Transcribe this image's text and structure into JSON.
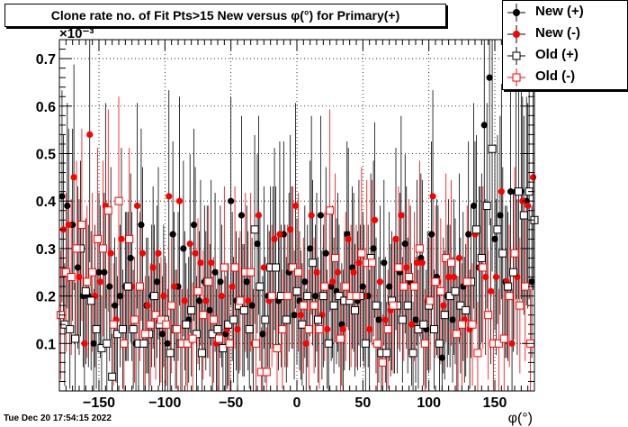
{
  "chart_data": {
    "type": "scatter",
    "title": "Clone rate no. of Fit Pts>15 New versus φ(°) for Primary(+)",
    "xlabel": "φ(°)",
    "ylabel": "",
    "y_exponent_label": "×10⁻³",
    "xlim": [
      -180,
      180
    ],
    "ylim": [
      0,
      0.74
    ],
    "x_ticks": [
      -150,
      -100,
      -50,
      0,
      50,
      100,
      150
    ],
    "x_tick_labels": [
      "−150",
      "−100",
      "−50",
      "0",
      "50",
      "100",
      "150"
    ],
    "y_ticks": [
      0.1,
      0.2,
      0.3,
      0.4,
      0.5,
      0.6,
      0.7
    ],
    "y_tick_labels": [
      "0.1",
      "0.2",
      "0.3",
      "0.4",
      "0.5",
      "0.6",
      "0.7"
    ],
    "grid": true,
    "legend_position": "top-right",
    "series": [
      {
        "name": "New (+)",
        "marker": "filled-circle",
        "color": "#000000",
        "x": [
          -178,
          -174,
          -170,
          -166,
          -162,
          -158,
          -154,
          -150,
          -146,
          -142,
          -138,
          -134,
          -130,
          -126,
          -122,
          -118,
          -114,
          -110,
          -106,
          -102,
          -98,
          -94,
          -90,
          -86,
          -82,
          -78,
          -74,
          -70,
          -66,
          -62,
          -58,
          -54,
          -50,
          -46,
          -42,
          -38,
          -34,
          -30,
          -26,
          -22,
          -18,
          -14,
          -10,
          -6,
          -2,
          2,
          6,
          10,
          14,
          18,
          22,
          26,
          30,
          34,
          38,
          42,
          46,
          50,
          54,
          58,
          62,
          66,
          70,
          74,
          78,
          82,
          86,
          90,
          94,
          98,
          102,
          106,
          110,
          114,
          118,
          122,
          126,
          130,
          134,
          138,
          142,
          146,
          150,
          154,
          158,
          162,
          166,
          170,
          174,
          178
        ],
        "y": [
          0.41,
          0.39,
          0.35,
          0.26,
          0.2,
          0.2,
          0.1,
          0.25,
          0.25,
          0.22,
          0.18,
          0.2,
          0.22,
          0.28,
          0.1,
          0.35,
          0.18,
          0.2,
          0.23,
          0.12,
          0.1,
          0.33,
          0.22,
          0.3,
          0.15,
          0.35,
          0.19,
          0.23,
          0.17,
          0.25,
          0.23,
          0.12,
          0.4,
          0.19,
          0.37,
          0.23,
          0.18,
          0.31,
          0.12,
          0.2,
          0.26,
          0.19,
          0.33,
          0.25,
          0.16,
          0.19,
          0.23,
          0.3,
          0.2,
          0.37,
          0.29,
          0.22,
          0.21,
          0.14,
          0.33,
          0.26,
          0.19,
          0.22,
          0.2,
          0.3,
          0.15,
          0.27,
          0.22,
          0.18,
          0.25,
          0.31,
          0.23,
          0.15,
          0.28,
          0.13,
          0.33,
          0.24,
          0.07,
          0.2,
          0.15,
          0.12,
          0.22,
          0.33,
          0.39,
          0.26,
          0.56,
          0.66,
          0.32,
          0.37,
          0.23,
          0.42,
          0.42,
          0.42,
          0.4,
          0.23
        ]
      },
      {
        "name": "New (-)",
        "marker": "filled-circle",
        "color": "#ff0000",
        "x": [
          -177,
          -173,
          -169,
          -165,
          -161,
          -157,
          -153,
          -149,
          -145,
          -141,
          -137,
          -133,
          -129,
          -125,
          -121,
          -117,
          -113,
          -109,
          -105,
          -101,
          -97,
          -93,
          -89,
          -85,
          -81,
          -77,
          -73,
          -69,
          -65,
          -61,
          -57,
          -53,
          -49,
          -45,
          -41,
          -37,
          -33,
          -29,
          -25,
          -21,
          -17,
          -13,
          -9,
          -5,
          -1,
          3,
          7,
          11,
          15,
          19,
          23,
          27,
          31,
          35,
          39,
          43,
          47,
          51,
          55,
          59,
          63,
          67,
          71,
          75,
          79,
          83,
          87,
          91,
          95,
          99,
          103,
          107,
          111,
          115,
          119,
          123,
          127,
          131,
          135,
          139,
          143,
          147,
          151,
          155,
          159,
          163,
          167,
          171,
          175,
          179
        ],
        "y": [
          0.34,
          0.35,
          0.45,
          0.24,
          0.1,
          0.54,
          0.2,
          0.23,
          0.39,
          0.29,
          0.15,
          0.32,
          0.22,
          0.22,
          0.39,
          0.29,
          0.18,
          0.26,
          0.29,
          0.2,
          0.41,
          0.22,
          0.4,
          0.19,
          0.31,
          0.29,
          0.27,
          0.19,
          0.27,
          0.1,
          0.2,
          0.13,
          0.22,
          0.13,
          0.17,
          0.19,
          0.1,
          0.37,
          0.26,
          0.19,
          0.32,
          0.33,
          0.2,
          0.34,
          0.39,
          0.16,
          0.1,
          0.37,
          0.25,
          0.16,
          0.13,
          0.23,
          0.25,
          0.13,
          0.32,
          0.25,
          0.27,
          0.2,
          0.13,
          0.36,
          0.23,
          0.15,
          0.17,
          0.32,
          0.37,
          0.26,
          0.14,
          0.27,
          0.27,
          0.19,
          0.41,
          0.23,
          0.18,
          0.24,
          0.24,
          0.28,
          0.15,
          0.13,
          0.33,
          0.26,
          0.24,
          0.21,
          0.24,
          0.42,
          0.23,
          0.1,
          0.24,
          0.4,
          0.39,
          0.45
        ]
      },
      {
        "name": "Old (+)",
        "marker": "open-square",
        "color": "#000000",
        "x": [
          -176,
          -172,
          -168,
          -164,
          -160,
          -156,
          -152,
          -148,
          -144,
          -140,
          -136,
          -132,
          -128,
          -124,
          -120,
          -116,
          -112,
          -108,
          -104,
          -100,
          -96,
          -92,
          -88,
          -84,
          -80,
          -76,
          -72,
          -68,
          -64,
          -60,
          -56,
          -52,
          -48,
          -44,
          -40,
          -36,
          -32,
          -28,
          -24,
          -20,
          -16,
          -12,
          -8,
          -4,
          0,
          4,
          8,
          12,
          16,
          20,
          24,
          28,
          32,
          36,
          40,
          44,
          48,
          52,
          56,
          60,
          64,
          68,
          72,
          76,
          80,
          84,
          88,
          92,
          96,
          100,
          104,
          108,
          112,
          116,
          120,
          124,
          128,
          132,
          136,
          140,
          144,
          148,
          152,
          156,
          160,
          164,
          168,
          172,
          176,
          180
        ],
        "y": [
          0.14,
          0.13,
          0.11,
          0.3,
          0.21,
          0.19,
          0.13,
          0.09,
          0.1,
          0.03,
          0.12,
          0.13,
          0.22,
          0.13,
          0.1,
          0.1,
          0.12,
          0.2,
          0.14,
          0.15,
          0.08,
          0.13,
          0.1,
          0.14,
          0.17,
          0.12,
          0.08,
          0.23,
          0.12,
          0.13,
          0.09,
          0.14,
          0.15,
          0.18,
          0.17,
          0.13,
          0.34,
          0.22,
          0.15,
          0.26,
          0.26,
          0.2,
          0.15,
          0.26,
          0.21,
          0.14,
          0.2,
          0.27,
          0.15,
          0.2,
          0.1,
          0.18,
          0.2,
          0.19,
          0.19,
          0.17,
          0.2,
          0.1,
          0.28,
          0.18,
          0.08,
          0.08,
          0.19,
          0.18,
          0.15,
          0.18,
          0.08,
          0.13,
          0.14,
          0.18,
          0.13,
          0.1,
          0.16,
          0.2,
          0.21,
          0.18,
          0.17,
          0.23,
          0.34,
          0.28,
          0.39,
          0.51,
          0.34,
          0.29,
          0.22,
          0.25,
          0.42,
          0.37,
          0.42,
          0.36
        ]
      },
      {
        "name": "Old (-)",
        "marker": "open-square",
        "color": "#ff0000",
        "x": [
          -179,
          -175,
          -171,
          -167,
          -163,
          -159,
          -155,
          -151,
          -147,
          -143,
          -139,
          -135,
          -131,
          -127,
          -123,
          -119,
          -115,
          -111,
          -107,
          -103,
          -99,
          -95,
          -91,
          -87,
          -83,
          -79,
          -75,
          -71,
          -67,
          -63,
          -59,
          -55,
          -51,
          -47,
          -43,
          -39,
          -35,
          -31,
          -27,
          -23,
          -19,
          -15,
          -11,
          -7,
          -3,
          1,
          5,
          9,
          13,
          17,
          21,
          25,
          29,
          33,
          37,
          41,
          45,
          49,
          53,
          57,
          61,
          65,
          69,
          73,
          77,
          81,
          85,
          89,
          93,
          97,
          101,
          105,
          109,
          113,
          117,
          121,
          125,
          129,
          133,
          137,
          141,
          145,
          149,
          153,
          157,
          161,
          165,
          169,
          173,
          177
        ],
        "y": [
          0.16,
          0.25,
          0.24,
          0.3,
          0.35,
          0.23,
          0.25,
          0.32,
          0.3,
          0.38,
          0.14,
          0.4,
          0.1,
          0.32,
          0.15,
          0.22,
          0.12,
          0.14,
          0.16,
          0.15,
          0.14,
          0.18,
          0.13,
          0.1,
          0.1,
          0.11,
          0.21,
          0.16,
          0.23,
          0.15,
          0.11,
          0.26,
          0.1,
          0.26,
          0.19,
          0.25,
          0.25,
          0.1,
          0.04,
          0.04,
          0.2,
          0.09,
          0.13,
          0.2,
          0.26,
          0.25,
          0.18,
          0.13,
          0.18,
          0.13,
          0.22,
          0.38,
          0.28,
          0.11,
          0.22,
          0.2,
          0.2,
          0.29,
          0.27,
          0.27,
          0.1,
          0.06,
          0.13,
          0.18,
          0.26,
          0.22,
          0.24,
          0.22,
          0.3,
          0.1,
          0.19,
          0.23,
          0.21,
          0.28,
          0.27,
          0.12,
          0.14,
          0.23,
          0.14,
          0.08,
          0.26,
          0.16,
          0.1,
          0.1,
          0.11,
          0.2,
          0.29,
          0.18,
          0.22,
          0.1
        ]
      }
    ]
  },
  "footer": {
    "timestamp": "Tue Dec 20 17:54:15 2022"
  }
}
